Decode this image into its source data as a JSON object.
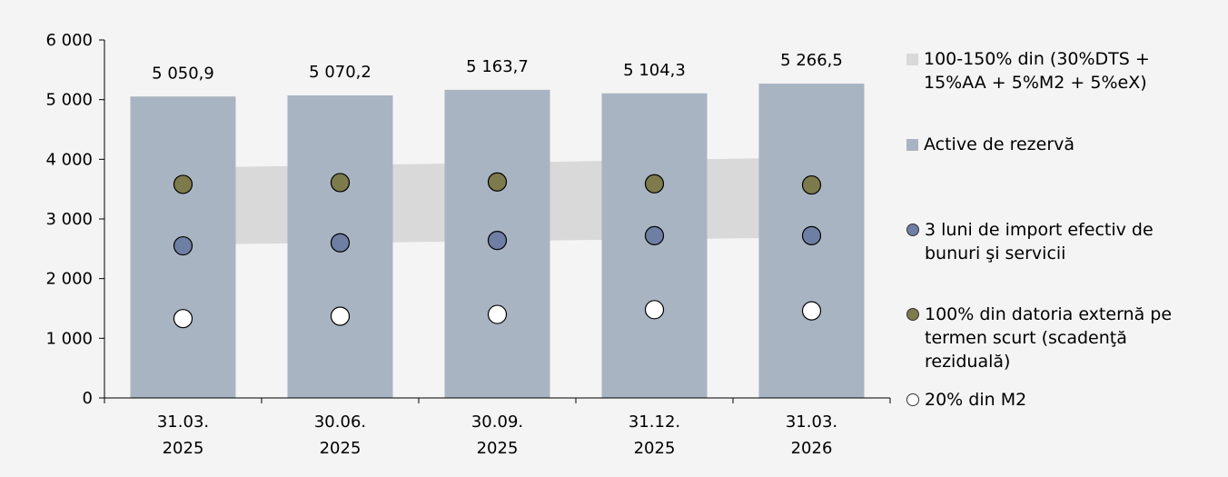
{
  "chart_data": {
    "type": "bar",
    "categories": [
      [
        "31.03.",
        "2025"
      ],
      [
        "30.06.",
        "2025"
      ],
      [
        "30.09.",
        "2025"
      ],
      [
        "31.12.",
        "2025"
      ],
      [
        "31.03.",
        "2026"
      ]
    ],
    "ylim": [
      0,
      6000
    ],
    "y_ticks": [
      0,
      1000,
      2000,
      3000,
      4000,
      5000,
      6000
    ],
    "y_tick_labels": [
      "0",
      "1 000",
      "2 000",
      "3 000",
      "4 000",
      "5 000",
      "6 000"
    ],
    "bars": {
      "name": "Active de rezervă",
      "values": [
        5050.9,
        5070.2,
        5163.7,
        5104.3,
        5266.5
      ],
      "labels": [
        "5 050,9",
        "5 070,2",
        "5 163,7",
        "5 104,3",
        "5 266,5"
      ],
      "color": "#a9b4c2"
    },
    "band": {
      "name": "100-150% din (30%DTS + 15%AA + 5%M2 + 5%eX)",
      "lower": [
        2570,
        2600,
        2630,
        2660,
        2690
      ],
      "upper": [
        3860,
        3900,
        3940,
        3990,
        4030
      ],
      "color": "#d9d9d9"
    },
    "point_series": [
      {
        "name": "3 luni de import efectiv de bunuri şi servicii",
        "values": [
          2550,
          2600,
          2640,
          2720,
          2720
        ],
        "color": "#6f7ea3"
      },
      {
        "name": "100% din datoria externă pe termen scurt (scadenţă reziduală)",
        "values": [
          3580,
          3610,
          3620,
          3590,
          3570
        ],
        "color": "#7d7a4c"
      },
      {
        "name": "20% din M2",
        "values": [
          1330,
          1370,
          1400,
          1480,
          1460
        ],
        "color": "#ffffff"
      }
    ],
    "legend": {
      "placement": "right",
      "items": [
        {
          "name": "100-150% din (30%DTS + 15%AA + 5%M2 + 5%eX)",
          "lines": [
            "100-150% din (30%DTS +",
            "15%AA + 5%M2 + 5%eX)"
          ],
          "shape": "square",
          "color": "#d9d9d9"
        },
        {
          "name": "Active de rezervă",
          "lines": [
            "Active de rezervă"
          ],
          "shape": "square",
          "color": "#a9b4c2"
        },
        {
          "name": "3 luni de import efectiv de bunuri şi servicii",
          "lines": [
            "3 luni de import efectiv de",
            "bunuri şi servicii"
          ],
          "shape": "circle",
          "color": "#6f7ea3"
        },
        {
          "name": "100% din datoria externă pe termen scurt (scadenţă reziduală)",
          "lines": [
            "100% din datoria externă pe",
            "termen scurt (scadenţă",
            "reziduală)"
          ],
          "shape": "circle",
          "color": "#7d7a4c"
        },
        {
          "name": "20% din M2",
          "lines": [
            "20% din M2"
          ],
          "shape": "circle",
          "color": "#ffffff"
        }
      ]
    },
    "grid": false
  }
}
